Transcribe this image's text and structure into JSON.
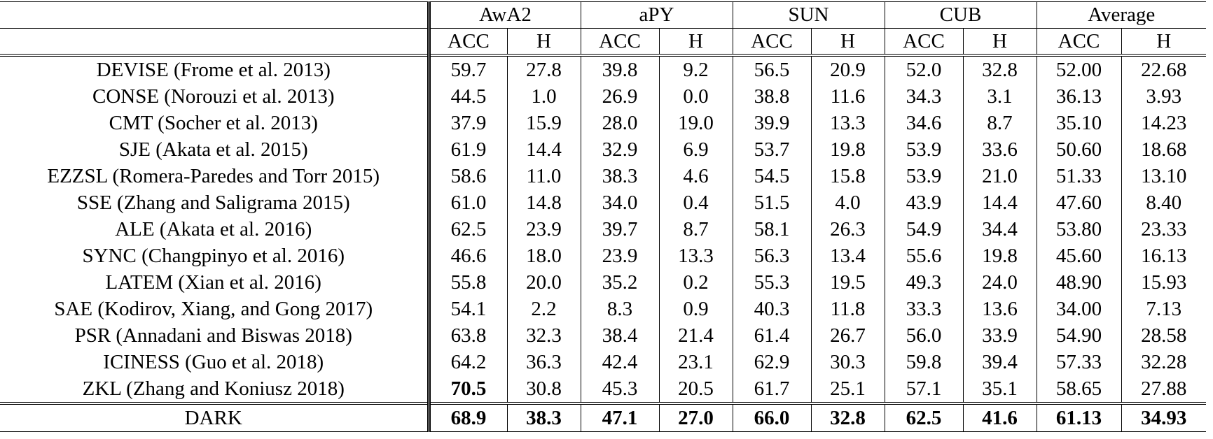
{
  "table": {
    "groups": [
      "AwA2",
      "aPY",
      "SUN",
      "CUB",
      "Average"
    ],
    "subheaders": [
      "ACC",
      "H",
      "ACC",
      "H",
      "ACC",
      "H",
      "ACC",
      "H",
      "ACC",
      "H"
    ],
    "rows": [
      {
        "method": "DEVISE (Frome et al. 2013)",
        "cells": [
          "59.7",
          "27.8",
          "39.8",
          "9.2",
          "56.5",
          "20.9",
          "52.0",
          "32.8",
          "52.00",
          "22.68"
        ]
      },
      {
        "method": "CONSE (Norouzi et al. 2013)",
        "cells": [
          "44.5",
          "1.0",
          "26.9",
          "0.0",
          "38.8",
          "11.6",
          "34.3",
          "3.1",
          "36.13",
          "3.93"
        ]
      },
      {
        "method": "CMT (Socher et al. 2013)",
        "cells": [
          "37.9",
          "15.9",
          "28.0",
          "19.0",
          "39.9",
          "13.3",
          "34.6",
          "8.7",
          "35.10",
          "14.23"
        ]
      },
      {
        "method": "SJE (Akata et al. 2015)",
        "cells": [
          "61.9",
          "14.4",
          "32.9",
          "6.9",
          "53.7",
          "19.8",
          "53.9",
          "33.6",
          "50.60",
          "18.68"
        ]
      },
      {
        "method": "EZZSL (Romera-Paredes and Torr 2015)",
        "cells": [
          "58.6",
          "11.0",
          "38.3",
          "4.6",
          "54.5",
          "15.8",
          "53.9",
          "21.0",
          "51.33",
          "13.10"
        ]
      },
      {
        "method": "SSE (Zhang and Saligrama 2015)",
        "cells": [
          "61.0",
          "14.8",
          "34.0",
          "0.4",
          "51.5",
          "4.0",
          "43.9",
          "14.4",
          "47.60",
          "8.40"
        ]
      },
      {
        "method": "ALE (Akata et al. 2016)",
        "cells": [
          "62.5",
          "23.9",
          "39.7",
          "8.7",
          "58.1",
          "26.3",
          "54.9",
          "34.4",
          "53.80",
          "23.33"
        ]
      },
      {
        "method": "SYNC (Changpinyo et al. 2016)",
        "cells": [
          "46.6",
          "18.0",
          "23.9",
          "13.3",
          "56.3",
          "13.4",
          "55.6",
          "19.8",
          "45.60",
          "16.13"
        ]
      },
      {
        "method": "LATEM (Xian et al. 2016)",
        "cells": [
          "55.8",
          "20.0",
          "35.2",
          "0.2",
          "55.3",
          "19.5",
          "49.3",
          "24.0",
          "48.90",
          "15.93"
        ]
      },
      {
        "method": "SAE (Kodirov, Xiang, and Gong 2017)",
        "cells": [
          "54.1",
          "2.2",
          "8.3",
          "0.9",
          "40.3",
          "11.8",
          "33.3",
          "13.6",
          "34.00",
          "7.13"
        ]
      },
      {
        "method": "PSR (Annadani and Biswas 2018)",
        "cells": [
          "63.8",
          "32.3",
          "38.4",
          "21.4",
          "61.4",
          "26.7",
          "56.0",
          "33.9",
          "54.90",
          "28.58"
        ]
      },
      {
        "method": "ICINESS (Guo et al. 2018)",
        "cells": [
          "64.2",
          "36.3",
          "42.4",
          "23.1",
          "62.9",
          "30.3",
          "59.8",
          "39.4",
          "57.33",
          "32.28"
        ]
      },
      {
        "method": "ZKL (Zhang and Koniusz 2018)",
        "cells": [
          "70.5",
          "30.8",
          "45.3",
          "20.5",
          "61.7",
          "25.1",
          "57.1",
          "35.1",
          "58.65",
          "27.88"
        ],
        "bold": [
          0
        ]
      },
      {
        "method": "DARK",
        "cells": [
          "68.9",
          "38.3",
          "47.1",
          "27.0",
          "66.0",
          "32.8",
          "62.5",
          "41.6",
          "61.13",
          "34.93"
        ],
        "bold": [
          0,
          1,
          2,
          3,
          4,
          5,
          6,
          7,
          8,
          9
        ]
      }
    ]
  }
}
